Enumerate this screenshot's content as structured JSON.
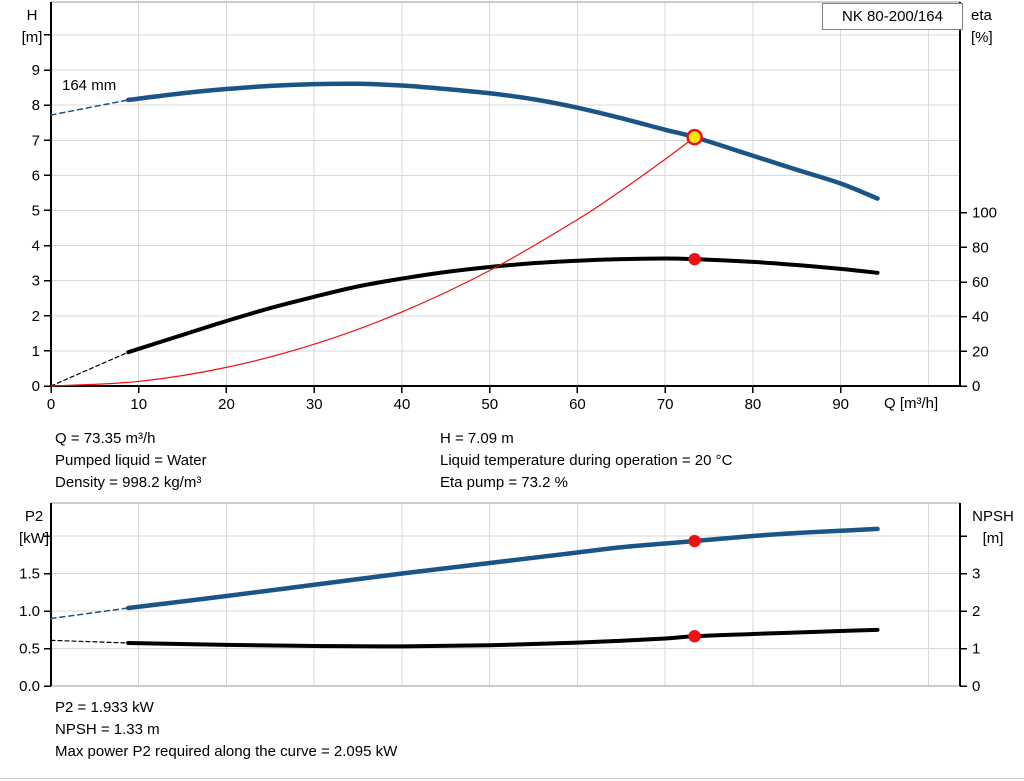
{
  "info_top": {
    "left": [
      "Q = 73.35 m³/h",
      "Pumped liquid = Water",
      "Density = 998.2 kg/m³"
    ],
    "right": [
      "H = 7.09 m",
      "Liquid temperature during operation = 20 °C",
      "Eta pump = 73.2 %"
    ]
  },
  "info_bottom": [
    "P2 = 1.933 kW",
    "NPSH = 1.33 m",
    "Max power P2 required along the curve = 2.095 kW"
  ],
  "colors": {
    "curve_blue": "#1a5586",
    "curve_black": "#000000",
    "curve_red": "#ee1111",
    "marker_yellow": "#ffe600",
    "grid": "#d9d9d9",
    "border_gray": "#999999",
    "page_rule": "#c9c9c9",
    "axis_black": "#000000"
  },
  "chart_data": [
    {
      "type": "line",
      "title": "NK 80-200/164",
      "xlabel": "Q [m³/h]",
      "ylabel_left": [
        "H",
        "[m]"
      ],
      "ylabel_right": [
        "eta",
        "[%]"
      ],
      "x_range": [
        0,
        103.6
      ],
      "yl_range": [
        0,
        10.94
      ],
      "yr_range": [
        0,
        221.6
      ],
      "grid": true,
      "x_ticks": [
        {
          "v": 0,
          "label": "0"
        },
        {
          "v": 10,
          "label": "10"
        },
        {
          "v": 20,
          "label": "20"
        },
        {
          "v": 30,
          "label": "30"
        },
        {
          "v": 40,
          "label": "40"
        },
        {
          "v": 50,
          "label": "50"
        },
        {
          "v": 60,
          "label": "60"
        },
        {
          "v": 70,
          "label": "70"
        },
        {
          "v": 80,
          "label": "80"
        },
        {
          "v": 90,
          "label": "90"
        }
      ],
      "x_grid": [
        10,
        20,
        30,
        40,
        50,
        60,
        70,
        80,
        90,
        100
      ],
      "yl_ticks": [
        {
          "v": 0,
          "label": "0"
        },
        {
          "v": 1,
          "label": "1"
        },
        {
          "v": 2,
          "label": "2"
        },
        {
          "v": 3,
          "label": "3"
        },
        {
          "v": 4,
          "label": "4"
        },
        {
          "v": 5,
          "label": "5"
        },
        {
          "v": 6,
          "label": "6"
        },
        {
          "v": 7,
          "label": "7"
        },
        {
          "v": 8,
          "label": "8"
        },
        {
          "v": 9,
          "label": "9"
        }
      ],
      "yl_ticks_unlabeled": [
        10
      ],
      "yl_grid": [
        1,
        2,
        3,
        4,
        5,
        6,
        7,
        8,
        9,
        10
      ],
      "yr_ticks": [
        {
          "v": 0,
          "label": "0"
        },
        {
          "v": 20,
          "label": "20"
        },
        {
          "v": 40,
          "label": "40"
        },
        {
          "v": 60,
          "label": "60"
        },
        {
          "v": 80,
          "label": "80"
        },
        {
          "v": 100,
          "label": "100"
        }
      ],
      "yr_ticks_unlabeled": [],
      "annotations": [
        {
          "text": "164 mm"
        }
      ],
      "series": [
        {
          "name": "head-curve-extrapolation",
          "axis": "left",
          "style": "dashed-blue",
          "points": [
            [
              0,
              7.72
            ],
            [
              8.8,
              8.15
            ]
          ]
        },
        {
          "name": "head-curve-164mm",
          "axis": "left",
          "style": "solid-blue",
          "points": [
            [
              8.8,
              8.15
            ],
            [
              15,
              8.34
            ],
            [
              20,
              8.46
            ],
            [
              25,
              8.55
            ],
            [
              30,
              8.6
            ],
            [
              35,
              8.61
            ],
            [
              40,
              8.56
            ],
            [
              45,
              8.46
            ],
            [
              50,
              8.34
            ],
            [
              55,
              8.17
            ],
            [
              60,
              7.93
            ],
            [
              65,
              7.63
            ],
            [
              70,
              7.3
            ],
            [
              73.35,
              7.09
            ],
            [
              80,
              6.56
            ],
            [
              85,
              6.16
            ],
            [
              90,
              5.77
            ],
            [
              94.2,
              5.34
            ]
          ]
        },
        {
          "name": "efficiency-curve-extrapolation",
          "axis": "right",
          "style": "dashed-black",
          "points": [
            [
              0,
              0
            ],
            [
              8.8,
              19.5
            ]
          ]
        },
        {
          "name": "efficiency-curve",
          "axis": "right",
          "style": "solid-black",
          "points": [
            [
              8.8,
              19.5
            ],
            [
              15,
              29.5
            ],
            [
              20,
              37.5
            ],
            [
              25,
              45
            ],
            [
              30,
              51.5
            ],
            [
              35,
              57.5
            ],
            [
              40,
              62
            ],
            [
              45,
              65.8
            ],
            [
              50,
              68.7
            ],
            [
              55,
              70.9
            ],
            [
              60,
              72.3
            ],
            [
              65,
              73.2
            ],
            [
              70,
              73.6
            ],
            [
              73.35,
              73.2
            ],
            [
              80,
              71.6
            ],
            [
              85,
              69.8
            ],
            [
              90,
              67.6
            ],
            [
              94.2,
              65.3
            ]
          ]
        },
        {
          "name": "system-curve",
          "axis": "left",
          "style": "thin-red",
          "points": [
            [
              0,
              0
            ],
            [
              10,
              0.13
            ],
            [
              20,
              0.53
            ],
            [
              30,
              1.19
            ],
            [
              40,
              2.11
            ],
            [
              50,
              3.29
            ],
            [
              60,
              4.74
            ],
            [
              65,
              5.57
            ],
            [
              70,
              6.46
            ],
            [
              73.35,
              7.09
            ]
          ]
        }
      ],
      "markers": [
        {
          "name": "duty-point",
          "axis": "left",
          "x": 73.35,
          "y": 7.09,
          "style": "yellow-dot"
        },
        {
          "name": "efficiency-duty-point",
          "axis": "right",
          "x": 73.35,
          "y": 73.2,
          "style": "red-dot"
        }
      ]
    },
    {
      "type": "line",
      "title": "",
      "xlabel": "",
      "ylabel_left": [
        "P2",
        "[kW]"
      ],
      "ylabel_right": [
        "NPSH",
        "[m]"
      ],
      "x_range": [
        0,
        103.6
      ],
      "yl_range": [
        0,
        2.44
      ],
      "yr_range": [
        0,
        4.89
      ],
      "grid": true,
      "x_ticks": [],
      "x_grid": [
        10,
        20,
        30,
        40,
        50,
        60,
        70,
        80,
        90,
        100
      ],
      "yl_ticks": [
        {
          "v": 0,
          "label": "0.0"
        },
        {
          "v": 0.5,
          "label": "0.5"
        },
        {
          "v": 1,
          "label": "1.0"
        },
        {
          "v": 1.5,
          "label": "1.5"
        }
      ],
      "yl_ticks_unlabeled": [
        2
      ],
      "yl_grid": [
        0.5,
        1,
        1.5,
        2
      ],
      "yr_ticks": [
        {
          "v": 0,
          "label": "0"
        },
        {
          "v": 1,
          "label": "1"
        },
        {
          "v": 2,
          "label": "2"
        },
        {
          "v": 3,
          "label": "3"
        }
      ],
      "yr_ticks_unlabeled": [
        4
      ],
      "annotations": [],
      "series": [
        {
          "name": "p2-curve-extrapolation",
          "axis": "left",
          "style": "dashed-blue",
          "points": [
            [
              0,
              0.9
            ],
            [
              8.8,
              1.04
            ]
          ]
        },
        {
          "name": "p2-curve",
          "axis": "left",
          "style": "solid-blue",
          "points": [
            [
              8.8,
              1.04
            ],
            [
              20,
              1.2
            ],
            [
              30,
              1.35
            ],
            [
              40,
              1.5
            ],
            [
              50,
              1.64
            ],
            [
              60,
              1.78
            ],
            [
              65,
              1.85
            ],
            [
              70,
              1.9
            ],
            [
              73.35,
              1.933
            ],
            [
              80,
              2.0
            ],
            [
              85,
              2.04
            ],
            [
              90,
              2.07
            ],
            [
              94.2,
              2.095
            ]
          ]
        },
        {
          "name": "npsh-curve-extrapolation",
          "axis": "right",
          "style": "dashed-black",
          "points": [
            [
              0,
              1.22
            ],
            [
              8.8,
              1.15
            ]
          ]
        },
        {
          "name": "npsh-curve",
          "axis": "right",
          "style": "solid-black",
          "points": [
            [
              8.8,
              1.15
            ],
            [
              20,
              1.1
            ],
            [
              30,
              1.07
            ],
            [
              40,
              1.06
            ],
            [
              50,
              1.09
            ],
            [
              60,
              1.16
            ],
            [
              65,
              1.21
            ],
            [
              70,
              1.27
            ],
            [
              73.35,
              1.33
            ],
            [
              80,
              1.39
            ],
            [
              85,
              1.43
            ],
            [
              90,
              1.47
            ],
            [
              94.2,
              1.5
            ]
          ]
        }
      ],
      "markers": [
        {
          "name": "p2-duty-point",
          "axis": "left",
          "x": 73.35,
          "y": 1.933,
          "style": "red-dot"
        },
        {
          "name": "npsh-duty-point",
          "axis": "right",
          "x": 73.35,
          "y": 1.33,
          "style": "red-dot"
        }
      ]
    }
  ]
}
